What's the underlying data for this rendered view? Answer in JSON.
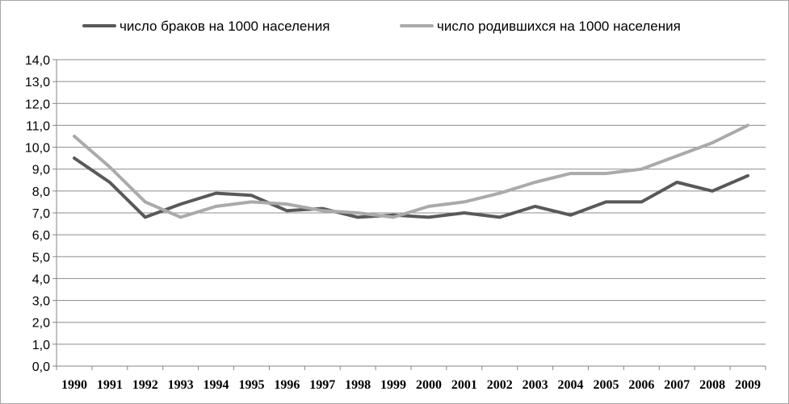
{
  "chart_data": {
    "type": "line",
    "title": "",
    "xlabel": "",
    "ylabel": "",
    "categories": [
      "1990",
      "1991",
      "1992",
      "1993",
      "1994",
      "1995",
      "1996",
      "1997",
      "1998",
      "1999",
      "2000",
      "2001",
      "2002",
      "2003",
      "2004",
      "2005",
      "2006",
      "2007",
      "2008",
      "2009"
    ],
    "y_ticks": [
      "0,0",
      "1,0",
      "2,0",
      "3,0",
      "4,0",
      "5,0",
      "6,0",
      "7,0",
      "8,0",
      "9,0",
      "10,0",
      "11,0",
      "12,0",
      "13,0",
      "14,0"
    ],
    "ylim": [
      0,
      14
    ],
    "grid": "horizontal",
    "legend_position": "top",
    "series": [
      {
        "name": "число браков на 1000 населения",
        "color": "#595959",
        "values": [
          9.5,
          8.4,
          6.8,
          7.4,
          7.9,
          7.8,
          7.1,
          7.2,
          6.8,
          6.9,
          6.8,
          7.0,
          6.8,
          7.3,
          6.9,
          7.5,
          7.5,
          8.4,
          8.0,
          8.7
        ]
      },
      {
        "name": "число родившихся на 1000 населения",
        "color": "#aaaaaa",
        "values": [
          10.5,
          9.1,
          7.5,
          6.8,
          7.3,
          7.5,
          7.4,
          7.1,
          7.0,
          6.8,
          7.3,
          7.5,
          7.9,
          8.4,
          8.8,
          8.8,
          9.0,
          9.6,
          10.2,
          11.0
        ]
      }
    ]
  }
}
